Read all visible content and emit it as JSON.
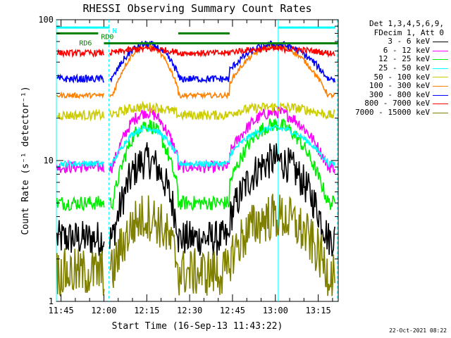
{
  "chart_data": {
    "type": "line",
    "title": "RHESSI Observing Summary Count Rates",
    "xlabel": "Start Time (16-Sep-13 11:43:22)",
    "ylabel": "Count Rate (s⁻¹ detector⁻¹)",
    "y_scale": "log",
    "ylim": [
      1,
      100
    ],
    "y_ticks": [
      "1",
      "10",
      "100"
    ],
    "x_ticks": [
      "11:45",
      "12:00",
      "12:15",
      "12:30",
      "12:45",
      "13:00",
      "13:15"
    ],
    "x_tick_minutes": [
      45,
      60,
      75,
      90,
      105,
      120,
      135
    ],
    "xlim_minutes": [
      43.37,
      142
    ],
    "legend_header": [
      "Det 1,3,4,5,6,9,",
      "FDecim 1, Att 0"
    ],
    "series": [
      {
        "name": "3 - 6 keV",
        "color": "#000000",
        "base": 2.8,
        "peak": 10,
        "noise": 0.3
      },
      {
        "name": "6 - 12 keV",
        "color": "#ff00ff",
        "base": 9,
        "peak": 22,
        "noise": 0.1
      },
      {
        "name": "12 - 25 keV",
        "color": "#00ee00",
        "base": 5,
        "peak": 18,
        "noise": 0.12
      },
      {
        "name": "25 - 50 keV",
        "color": "#00ffff",
        "base": 9.5,
        "peak": 17,
        "noise": 0.05
      },
      {
        "name": "50 - 100 keV",
        "color": "#cccc00",
        "base": 21,
        "peak": 24,
        "noise": 0.08
      },
      {
        "name": "100 - 300 keV",
        "color": "#ff8000",
        "base": 29,
        "peak": 65,
        "noise": 0.04
      },
      {
        "name": "300 - 800 keV",
        "color": "#0000ff",
        "base": 38,
        "peak": 67,
        "noise": 0.06
      },
      {
        "name": "800 - 7000 keV",
        "color": "#ff0000",
        "base": 58,
        "peak": 62,
        "noise": 0.05
      },
      {
        "name": "7000 - 15000 keV",
        "color": "#808000",
        "base": 1.6,
        "peak": 4,
        "noise": 0.4
      }
    ],
    "flag_bars": [
      {
        "label": "N",
        "color": "#00ffff",
        "segments": [
          [
            43.37,
            62
          ],
          [
            121,
            141
          ]
        ],
        "level": 88
      },
      {
        "label": "RD0",
        "color": "#008000",
        "segments": [
          [
            43.37,
            58
          ],
          [
            86,
            104
          ]
        ],
        "level": 80
      },
      {
        "label": "RD6",
        "color": "#008000",
        "segments": [
          [
            60,
            142
          ]
        ],
        "level": 68
      }
    ],
    "night_boundaries_minutes": [
      62,
      142
    ],
    "day_start_minutes": [
      43.37,
      121
    ]
  },
  "timestamp": "22-Oct-2021 08:22"
}
